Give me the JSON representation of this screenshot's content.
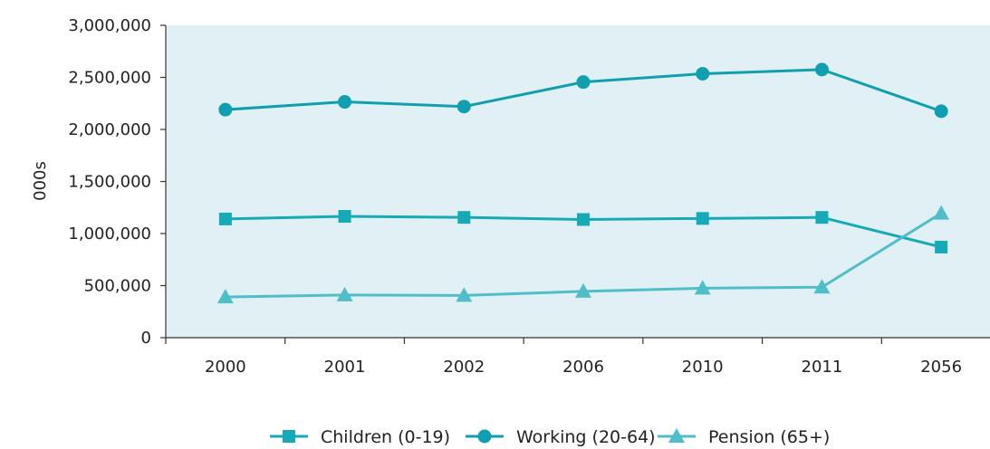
{
  "chart_data": {
    "type": "line",
    "title": "",
    "xlabel": "",
    "ylabel": "000s",
    "categories": [
      "2000",
      "2001",
      "2002",
      "2006",
      "2010",
      "2011",
      "2056"
    ],
    "ylim": [
      0,
      3000000
    ],
    "yticks": [
      0,
      500000,
      1000000,
      1500000,
      2000000,
      2500000,
      3000000
    ],
    "ytick_labels": [
      "0",
      "500,000",
      "1,000,000",
      "1,500,000",
      "2,000,000",
      "2,500,000",
      "3,000,000"
    ],
    "grid": false,
    "legend_position": "bottom",
    "plot_background": "#e1f0f4",
    "series": [
      {
        "name": "Children (0-19)",
        "marker": "square",
        "color": "#16a9b8",
        "values": [
          1140000,
          1165000,
          1155000,
          1135000,
          1145000,
          1155000,
          870000
        ]
      },
      {
        "name": "Working (20-64)",
        "marker": "circle",
        "color": "#0f9fb0",
        "values": [
          2190000,
          2265000,
          2220000,
          2455000,
          2535000,
          2575000,
          2175000
        ]
      },
      {
        "name": "Pension (65+)",
        "marker": "triangle",
        "color": "#4fbec8",
        "values": [
          390000,
          410000,
          405000,
          445000,
          475000,
          485000,
          1195000
        ]
      }
    ]
  }
}
